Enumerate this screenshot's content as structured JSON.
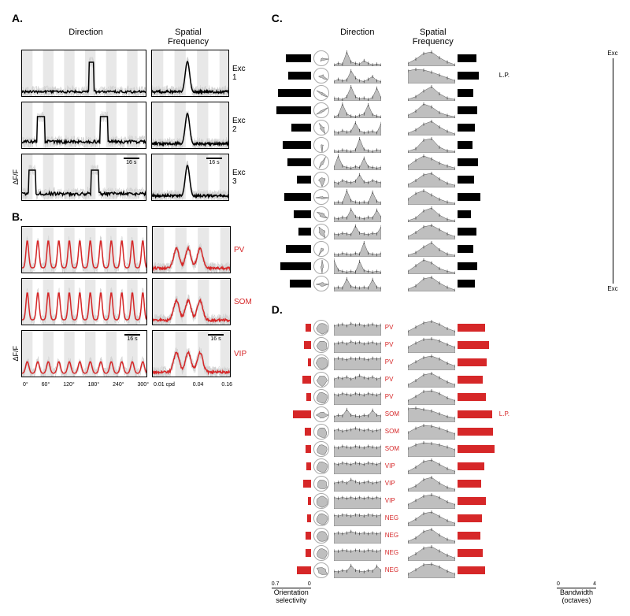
{
  "panels": {
    "A": "A.",
    "B": "B.",
    "C": "C.",
    "D": "D."
  },
  "headers": {
    "direction": "Direction",
    "sf": "Spatial\nFrequency",
    "sf2": "Spatial Frequency"
  },
  "axis": {
    "df": "ΔF/F",
    "osi": "Orientation\nselectivity",
    "bw": "Bandwidth\n(octaves)"
  },
  "scale": "16 s",
  "dir_ticks": [
    "0°",
    "60°",
    "120°",
    "180°",
    "240°",
    "300°"
  ],
  "sf_ticks": [
    "0.01 cpd",
    "0.04",
    "0.16"
  ],
  "osi_ticks": [
    "0.7",
    "0"
  ],
  "bw_ticks": [
    "0",
    "4"
  ],
  "exc_vert": "Exc",
  "lp": "L.P.",
  "y60": "60",
  "traces_exc": [
    {
      "label": "Exc 1",
      "dir_trace": "flat_spike",
      "sf_trace": "peak"
    },
    {
      "label": "Exc 2",
      "dir_trace": "two_peaks",
      "sf_trace": "peak"
    },
    {
      "label": "Exc 3",
      "dir_trace": "two_peaks_b",
      "sf_trace": "peak"
    }
  ],
  "traces_inh": [
    {
      "label": "PV",
      "dir_trace": "multipeak",
      "sf_trace": "broad",
      "color": "#d62728"
    },
    {
      "label": "SOM",
      "dir_trace": "multipeak",
      "sf_trace": "broad",
      "color": "#d62728"
    },
    {
      "label": "VIP",
      "dir_trace": "lowmulti",
      "sf_trace": "broad",
      "color": "#d62728"
    }
  ],
  "panelC": [
    {
      "osi": 0.45,
      "bw": 1.9,
      "lp": false,
      "dir": [
        0.1,
        0.2,
        0.15,
        1.0,
        0.3,
        0.2,
        0.15,
        0.4,
        0.2,
        0.1,
        0.15,
        0.1
      ],
      "sf": [
        0.2,
        0.5,
        0.9,
        1.0,
        0.6,
        0.3,
        0.1
      ]
    },
    {
      "osi": 0.4,
      "bw": 2.2,
      "lp": true,
      "dir": [
        0.15,
        0.3,
        0.2,
        0.25,
        0.9,
        0.4,
        0.2,
        0.15,
        0.3,
        0.5,
        0.2,
        0.15
      ],
      "sf": [
        0.9,
        1.0,
        0.95,
        0.8,
        0.6,
        0.4,
        0.2
      ]
    },
    {
      "osi": 0.58,
      "bw": 1.6,
      "lp": false,
      "dir": [
        0.2,
        0.15,
        0.1,
        0.3,
        1.0,
        0.3,
        0.15,
        0.2,
        0.1,
        0.25,
        0.9,
        0.2
      ],
      "sf": [
        0.1,
        0.3,
        0.7,
        1.0,
        0.5,
        0.2,
        0.1
      ]
    },
    {
      "osi": 0.62,
      "bw": 2.0,
      "lp": false,
      "dir": [
        0.1,
        0.2,
        1.0,
        0.3,
        0.15,
        0.1,
        0.2,
        0.3,
        0.95,
        0.25,
        0.15,
        0.1
      ],
      "sf": [
        0.2,
        0.5,
        1.0,
        0.8,
        0.4,
        0.2,
        0.1
      ]
    },
    {
      "osi": 0.35,
      "bw": 1.8,
      "lp": false,
      "dir": [
        0.3,
        0.2,
        0.35,
        0.25,
        0.3,
        0.9,
        0.35,
        0.2,
        0.25,
        0.3,
        0.2,
        0.85
      ],
      "sf": [
        0.15,
        0.4,
        0.8,
        1.0,
        0.6,
        0.3,
        0.1
      ]
    },
    {
      "osi": 0.5,
      "bw": 1.5,
      "lp": false,
      "dir": [
        0.15,
        0.1,
        0.2,
        0.15,
        0.1,
        0.2,
        1.0,
        0.25,
        0.15,
        0.1,
        0.2,
        0.15
      ],
      "sf": [
        0.1,
        0.3,
        0.9,
        1.0,
        0.4,
        0.15,
        0.1
      ]
    },
    {
      "osi": 0.42,
      "bw": 2.1,
      "lp": false,
      "dir": [
        0.2,
        1.0,
        0.3,
        0.2,
        0.15,
        0.25,
        0.2,
        0.85,
        0.25,
        0.2,
        0.15,
        0.2
      ],
      "sf": [
        0.3,
        0.7,
        1.0,
        0.8,
        0.5,
        0.3,
        0.15
      ]
    },
    {
      "osi": 0.25,
      "bw": 1.7,
      "lp": false,
      "dir": [
        0.4,
        0.3,
        0.5,
        0.4,
        0.35,
        0.45,
        0.9,
        0.4,
        0.35,
        0.5,
        0.4,
        0.35
      ],
      "sf": [
        0.2,
        0.5,
        0.9,
        1.0,
        0.6,
        0.3,
        0.15
      ]
    },
    {
      "osi": 0.48,
      "bw": 2.3,
      "lp": false,
      "dir": [
        0.15,
        0.2,
        0.15,
        1.0,
        0.3,
        0.2,
        0.15,
        0.2,
        0.15,
        0.9,
        0.25,
        0.15
      ],
      "sf": [
        0.4,
        0.8,
        1.0,
        0.7,
        0.4,
        0.2,
        0.1
      ]
    },
    {
      "osi": 0.3,
      "bw": 1.4,
      "lp": false,
      "dir": [
        0.3,
        0.25,
        0.35,
        0.3,
        0.9,
        0.4,
        0.3,
        0.25,
        0.35,
        0.3,
        0.85,
        0.35
      ],
      "sf": [
        0.1,
        0.3,
        0.8,
        1.0,
        0.5,
        0.2,
        0.1
      ]
    },
    {
      "osi": 0.22,
      "bw": 1.9,
      "lp": false,
      "dir": [
        0.4,
        0.35,
        0.45,
        0.4,
        0.35,
        0.95,
        0.45,
        0.4,
        0.35,
        0.45,
        0.4,
        0.9
      ],
      "sf": [
        0.2,
        0.5,
        0.9,
        1.0,
        0.7,
        0.4,
        0.2
      ]
    },
    {
      "osi": 0.44,
      "bw": 1.6,
      "lp": false,
      "dir": [
        0.2,
        0.15,
        0.25,
        0.2,
        0.15,
        0.25,
        0.2,
        1.0,
        0.25,
        0.2,
        0.15,
        0.25
      ],
      "sf": [
        0.1,
        0.3,
        0.7,
        1.0,
        0.5,
        0.2,
        0.1
      ]
    },
    {
      "osi": 0.55,
      "bw": 2.0,
      "lp": false,
      "dir": [
        1.0,
        0.3,
        0.2,
        0.15,
        0.2,
        0.15,
        0.9,
        0.25,
        0.2,
        0.15,
        0.2,
        0.15
      ],
      "sf": [
        0.2,
        0.6,
        1.0,
        0.8,
        0.4,
        0.2,
        0.1
      ]
    },
    {
      "osi": 0.38,
      "bw": 1.8,
      "lp": false,
      "dir": [
        0.25,
        0.3,
        0.25,
        0.9,
        0.35,
        0.3,
        0.25,
        0.3,
        0.25,
        0.85,
        0.3,
        0.25
      ],
      "sf": [
        0.15,
        0.4,
        0.9,
        1.0,
        0.6,
        0.3,
        0.1
      ]
    }
  ],
  "panelD": [
    {
      "label": "PV",
      "osi": 0.1,
      "bw": 2.8,
      "lp": false,
      "dir": [
        0.7,
        0.75,
        0.8,
        0.7,
        0.85,
        0.75,
        0.8,
        0.7,
        0.75,
        0.8,
        0.7,
        0.75
      ],
      "sf": [
        0.3,
        0.6,
        0.9,
        1.0,
        0.8,
        0.5,
        0.3
      ]
    },
    {
      "label": "PV",
      "osi": 0.12,
      "bw": 3.2,
      "lp": false,
      "dir": [
        0.65,
        0.7,
        0.75,
        0.65,
        0.8,
        0.7,
        0.75,
        0.65,
        0.7,
        0.75,
        0.65,
        0.7
      ],
      "sf": [
        0.4,
        0.7,
        0.95,
        1.0,
        0.85,
        0.6,
        0.4
      ]
    },
    {
      "label": "PV",
      "osi": 0.05,
      "bw": 3.0,
      "lp": false,
      "dir": [
        0.8,
        0.85,
        0.8,
        0.75,
        0.85,
        0.8,
        0.85,
        0.8,
        0.75,
        0.85,
        0.8,
        0.85
      ],
      "sf": [
        0.3,
        0.6,
        0.9,
        1.0,
        0.8,
        0.5,
        0.3
      ]
    },
    {
      "label": "PV",
      "osi": 0.15,
      "bw": 2.6,
      "lp": false,
      "dir": [
        0.6,
        0.7,
        0.65,
        0.75,
        0.6,
        0.7,
        0.85,
        0.7,
        0.65,
        0.75,
        0.6,
        0.7
      ],
      "sf": [
        0.2,
        0.5,
        0.9,
        1.0,
        0.7,
        0.4,
        0.2
      ]
    },
    {
      "label": "PV",
      "osi": 0.08,
      "bw": 2.9,
      "lp": false,
      "dir": [
        0.75,
        0.7,
        0.8,
        0.75,
        0.7,
        0.8,
        0.75,
        0.7,
        0.8,
        0.75,
        0.7,
        0.8
      ],
      "sf": [
        0.3,
        0.6,
        0.95,
        1.0,
        0.8,
        0.5,
        0.3
      ]
    },
    {
      "label": "SOM",
      "osi": 0.32,
      "bw": 3.5,
      "lp": true,
      "dir": [
        0.4,
        0.5,
        0.45,
        0.9,
        0.5,
        0.45,
        0.4,
        0.5,
        0.45,
        0.85,
        0.5,
        0.45
      ],
      "sf": [
        0.95,
        1.0,
        0.9,
        0.8,
        0.6,
        0.4,
        0.3
      ]
    },
    {
      "label": "SOM",
      "osi": 0.11,
      "bw": 3.6,
      "lp": false,
      "dir": [
        0.65,
        0.7,
        0.6,
        0.65,
        0.7,
        0.8,
        0.7,
        0.65,
        0.7,
        0.6,
        0.65,
        0.7
      ],
      "sf": [
        0.5,
        0.8,
        1.0,
        0.95,
        0.8,
        0.6,
        0.4
      ]
    },
    {
      "label": "SOM",
      "osi": 0.09,
      "bw": 3.8,
      "lp": false,
      "dir": [
        0.7,
        0.65,
        0.75,
        0.7,
        0.65,
        0.75,
        0.7,
        0.65,
        0.75,
        0.7,
        0.65,
        0.75
      ],
      "sf": [
        0.6,
        0.85,
        1.0,
        0.95,
        0.85,
        0.7,
        0.5
      ]
    },
    {
      "label": "VIP",
      "osi": 0.08,
      "bw": 2.7,
      "lp": false,
      "dir": [
        0.75,
        0.7,
        0.8,
        0.75,
        0.7,
        0.8,
        0.75,
        0.7,
        0.8,
        0.75,
        0.7,
        0.8
      ],
      "sf": [
        0.2,
        0.5,
        0.9,
        1.0,
        0.7,
        0.4,
        0.2
      ]
    },
    {
      "label": "VIP",
      "osi": 0.14,
      "bw": 2.4,
      "lp": false,
      "dir": [
        0.6,
        0.65,
        0.7,
        0.6,
        0.85,
        0.7,
        0.6,
        0.65,
        0.7,
        0.6,
        0.65,
        0.7
      ],
      "sf": [
        0.15,
        0.4,
        0.85,
        1.0,
        0.6,
        0.3,
        0.15
      ]
    },
    {
      "label": "VIP",
      "osi": 0.06,
      "bw": 2.9,
      "lp": false,
      "dir": [
        0.8,
        0.75,
        0.8,
        0.75,
        0.8,
        0.75,
        0.8,
        0.75,
        0.8,
        0.75,
        0.8,
        0.75
      ],
      "sf": [
        0.3,
        0.6,
        0.9,
        1.0,
        0.8,
        0.5,
        0.3
      ]
    },
    {
      "label": "NEG",
      "osi": 0.07,
      "bw": 2.5,
      "lp": false,
      "dir": [
        0.78,
        0.72,
        0.8,
        0.78,
        0.72,
        0.8,
        0.78,
        0.72,
        0.8,
        0.78,
        0.72,
        0.8
      ],
      "sf": [
        0.2,
        0.5,
        0.9,
        1.0,
        0.7,
        0.4,
        0.2
      ]
    },
    {
      "label": "NEG",
      "osi": 0.1,
      "bw": 2.3,
      "lp": false,
      "dir": [
        0.7,
        0.75,
        0.7,
        0.75,
        0.85,
        0.75,
        0.7,
        0.75,
        0.7,
        0.75,
        0.7,
        0.75
      ],
      "sf": [
        0.15,
        0.4,
        0.85,
        1.0,
        0.6,
        0.3,
        0.15
      ]
    },
    {
      "label": "NEG",
      "osi": 0.09,
      "bw": 2.6,
      "lp": false,
      "dir": [
        0.72,
        0.68,
        0.75,
        0.72,
        0.68,
        0.75,
        0.72,
        0.68,
        0.75,
        0.72,
        0.68,
        0.75
      ],
      "sf": [
        0.2,
        0.5,
        0.9,
        1.0,
        0.7,
        0.4,
        0.2
      ]
    },
    {
      "label": "NEG",
      "osi": 0.25,
      "bw": 2.8,
      "lp": false,
      "dir": [
        0.5,
        0.45,
        0.55,
        0.5,
        0.9,
        0.55,
        0.5,
        0.45,
        0.55,
        0.5,
        0.85,
        0.55
      ],
      "sf": [
        0.3,
        0.6,
        0.95,
        1.0,
        0.8,
        0.5,
        0.3
      ]
    }
  ],
  "colors": {
    "exc": "#000000",
    "inh": "#d62728",
    "fill": "#bfbfbf",
    "stripe": "#e8e8e8",
    "trace_bg": "#d0d0d0"
  }
}
